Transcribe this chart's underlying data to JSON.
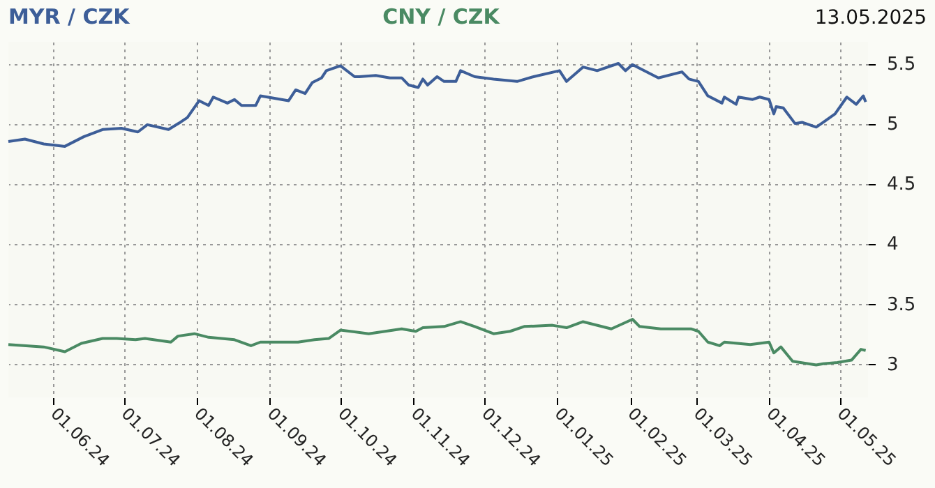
{
  "chart_data": {
    "type": "line",
    "annotations": [
      "13.05.2025"
    ],
    "xlim": [
      "2024-05-13",
      "2025-05-13"
    ],
    "xticks": [
      {
        "value": "2024-06-01",
        "label": "01.06.24"
      },
      {
        "value": "2024-07-01",
        "label": "01.07.24"
      },
      {
        "value": "2024-08-01",
        "label": "01.08.24"
      },
      {
        "value": "2024-09-01",
        "label": "01.09.24"
      },
      {
        "value": "2024-10-01",
        "label": "01.10.24"
      },
      {
        "value": "2024-11-01",
        "label": "01.11.24"
      },
      {
        "value": "2024-12-01",
        "label": "01.12.24"
      },
      {
        "value": "2025-01-01",
        "label": "01.01.25"
      },
      {
        "value": "2025-02-01",
        "label": "01.02.25"
      },
      {
        "value": "2025-03-01",
        "label": "01.03.25"
      },
      {
        "value": "2025-04-01",
        "label": "01.04.25"
      },
      {
        "value": "2025-05-01",
        "label": "01.05.25"
      }
    ],
    "ylim": [
      2.72,
      5.68
    ],
    "yticks": [
      3,
      3.5,
      4,
      4.5,
      5,
      5.5
    ],
    "grid": true,
    "series": [
      {
        "name": "MYR / CZK",
        "color": "#3d5e98",
        "x": [
          "2024-05-13",
          "2024-05-20",
          "2024-05-28",
          "2024-06-06",
          "2024-06-14",
          "2024-06-22",
          "2024-06-30",
          "2024-07-07",
          "2024-07-11",
          "2024-07-20",
          "2024-07-25",
          "2024-07-28",
          "2024-08-02",
          "2024-08-06",
          "2024-08-08",
          "2024-08-14",
          "2024-08-17",
          "2024-08-20",
          "2024-08-26",
          "2024-08-28",
          "2024-09-03",
          "2024-09-09",
          "2024-09-12",
          "2024-09-16",
          "2024-09-19",
          "2024-09-23",
          "2024-09-25",
          "2024-10-01",
          "2024-10-07",
          "2024-10-09",
          "2024-10-16",
          "2024-10-22",
          "2024-10-27",
          "2024-10-30",
          "2024-11-03",
          "2024-11-05",
          "2024-11-07",
          "2024-11-11",
          "2024-11-14",
          "2024-11-19",
          "2024-11-21",
          "2024-11-27",
          "2024-12-05",
          "2024-12-15",
          "2024-12-22",
          "2025-01-02",
          "2025-01-05",
          "2025-01-12",
          "2025-01-18",
          "2025-01-27",
          "2025-01-30",
          "2025-02-02",
          "2025-02-13",
          "2025-02-23",
          "2025-02-26",
          "2025-03-02",
          "2025-03-06",
          "2025-03-12",
          "2025-03-13",
          "2025-03-18",
          "2025-03-19",
          "2025-03-25",
          "2025-03-28",
          "2025-04-01",
          "2025-04-03",
          "2025-04-04",
          "2025-04-07",
          "2025-04-12",
          "2025-04-15",
          "2025-04-21",
          "2025-04-24",
          "2025-04-29",
          "2025-05-04",
          "2025-05-08",
          "2025-05-11",
          "2025-05-12"
        ],
        "values": [
          4.85,
          4.87,
          4.83,
          4.81,
          4.89,
          4.95,
          4.96,
          4.93,
          4.99,
          4.95,
          5.01,
          5.05,
          5.19,
          5.15,
          5.22,
          5.17,
          5.2,
          5.15,
          5.15,
          5.23,
          5.21,
          5.19,
          5.28,
          5.25,
          5.34,
          5.38,
          5.44,
          5.48,
          5.39,
          5.39,
          5.4,
          5.38,
          5.38,
          5.32,
          5.3,
          5.37,
          5.32,
          5.39,
          5.35,
          5.35,
          5.44,
          5.39,
          5.37,
          5.35,
          5.39,
          5.44,
          5.35,
          5.47,
          5.44,
          5.5,
          5.44,
          5.49,
          5.38,
          5.43,
          5.37,
          5.35,
          5.23,
          5.17,
          5.22,
          5.16,
          5.22,
          5.2,
          5.22,
          5.2,
          5.08,
          5.14,
          5.13,
          5.0,
          5.01,
          4.97,
          5.01,
          5.08,
          5.22,
          5.16,
          5.23,
          5.18
        ]
      },
      {
        "name": "CNY / CZK",
        "color": "#4a8a63",
        "x": [
          "2024-05-13",
          "2024-05-28",
          "2024-06-06",
          "2024-06-13",
          "2024-06-22",
          "2024-06-28",
          "2024-07-06",
          "2024-07-10",
          "2024-07-21",
          "2024-07-24",
          "2024-07-31",
          "2024-08-06",
          "2024-08-17",
          "2024-08-24",
          "2024-08-28",
          "2024-09-13",
          "2024-09-20",
          "2024-09-26",
          "2024-10-01",
          "2024-10-13",
          "2024-10-27",
          "2024-11-02",
          "2024-11-05",
          "2024-11-14",
          "2024-11-21",
          "2024-11-27",
          "2024-12-05",
          "2024-12-12",
          "2024-12-18",
          "2024-12-30",
          "2025-01-05",
          "2025-01-12",
          "2025-01-24",
          "2025-02-02",
          "2025-02-05",
          "2025-02-14",
          "2025-02-27",
          "2025-03-02",
          "2025-03-06",
          "2025-03-11",
          "2025-03-13",
          "2025-03-24",
          "2025-04-01",
          "2025-04-03",
          "2025-04-06",
          "2025-04-11",
          "2025-04-21",
          "2025-04-24",
          "2025-04-30",
          "2025-05-06",
          "2025-05-10",
          "2025-05-12"
        ],
        "values": [
          3.16,
          3.14,
          3.1,
          3.17,
          3.21,
          3.21,
          3.2,
          3.21,
          3.18,
          3.23,
          3.25,
          3.22,
          3.2,
          3.15,
          3.18,
          3.18,
          3.2,
          3.21,
          3.28,
          3.25,
          3.29,
          3.27,
          3.3,
          3.31,
          3.35,
          3.31,
          3.25,
          3.27,
          3.31,
          3.32,
          3.3,
          3.35,
          3.29,
          3.37,
          3.31,
          3.29,
          3.29,
          3.27,
          3.18,
          3.15,
          3.18,
          3.16,
          3.18,
          3.09,
          3.14,
          3.02,
          2.99,
          3.0,
          3.01,
          3.03,
          3.12,
          3.11
        ]
      }
    ]
  }
}
